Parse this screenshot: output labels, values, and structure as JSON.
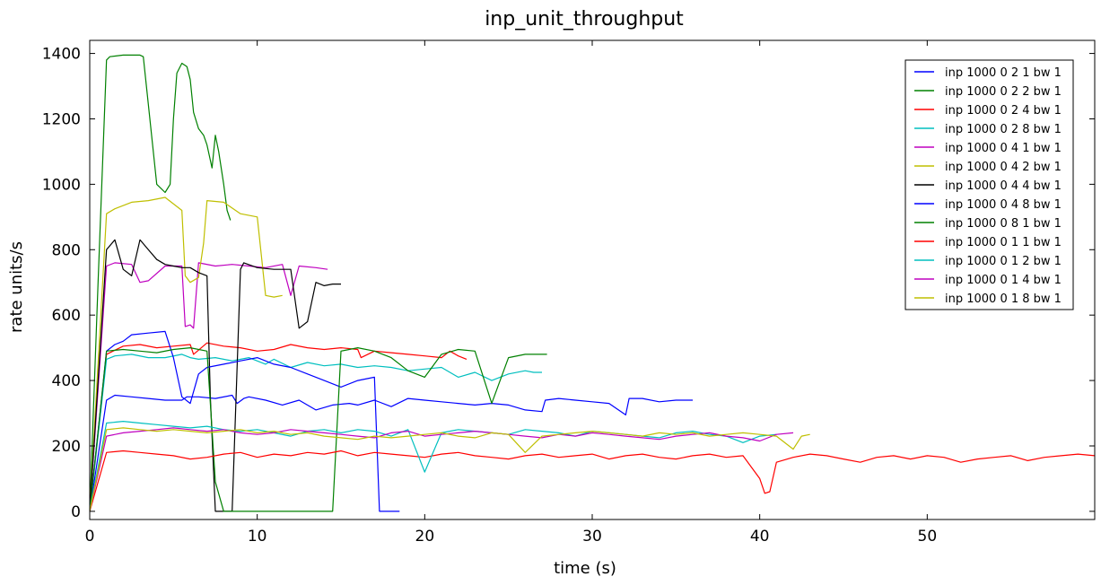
{
  "chart_data": {
    "type": "line",
    "title": "inp_unit_throughput",
    "xlabel": "time (s)",
    "ylabel": "rate units/s",
    "xlim": [
      0,
      60
    ],
    "ylim": [
      -25,
      1440
    ],
    "xticks": [
      0,
      10,
      20,
      30,
      40,
      50
    ],
    "yticks": [
      0,
      200,
      400,
      600,
      800,
      1000,
      1200,
      1400
    ],
    "grid": false,
    "legend_position": "top-right",
    "series": [
      {
        "name": "inp 1000 0 2 1 bw 1",
        "color": "#0000ff",
        "x": [
          0,
          1,
          1.5,
          2.5,
          3.5,
          4.5,
          5.5,
          5.8,
          6.5,
          7.5,
          8.5,
          8.8,
          9.2,
          9.5,
          10.5,
          11.5,
          12.5,
          13.5,
          14.5,
          15.5,
          16,
          17,
          18,
          19,
          20,
          21,
          22,
          23,
          24,
          25,
          26,
          27,
          27.2,
          28,
          29,
          30,
          31,
          32,
          32.2,
          33,
          34,
          35,
          36
        ],
        "y": [
          0,
          340,
          355,
          350,
          345,
          340,
          340,
          350,
          350,
          345,
          355,
          330,
          345,
          350,
          340,
          325,
          340,
          310,
          325,
          330,
          325,
          340,
          320,
          345,
          340,
          335,
          330,
          325,
          330,
          325,
          310,
          305,
          340,
          345,
          340,
          335,
          330,
          295,
          345,
          345,
          335,
          340,
          340
        ]
      },
      {
        "name": "inp 1000 0 2 2 bw 1",
        "color": "#008000",
        "x": [
          0,
          0.5,
          1,
          1.2,
          2,
          3,
          3.2,
          4,
          4.5,
          4.8,
          5,
          5.2,
          5.5,
          5.8,
          6,
          6.2,
          6.5,
          6.8,
          7,
          7.3,
          7.5,
          7.7,
          8,
          8.2,
          8.4
        ],
        "y": [
          0,
          700,
          1380,
          1390,
          1395,
          1395,
          1390,
          1000,
          975,
          1000,
          1200,
          1340,
          1370,
          1360,
          1320,
          1220,
          1170,
          1150,
          1120,
          1050,
          1150,
          1100,
          1000,
          920,
          890
        ]
      },
      {
        "name": "inp 1000 0 2 4 bw 1",
        "color": "#ff0000",
        "x": [
          0,
          1,
          2,
          3,
          4,
          5,
          6,
          6.2,
          7,
          8,
          9,
          10,
          11,
          12,
          13,
          14,
          15,
          16,
          16.2,
          17,
          18,
          19,
          20,
          21,
          21.5,
          22,
          22.5
        ],
        "y": [
          0,
          480,
          505,
          510,
          500,
          505,
          510,
          480,
          515,
          505,
          500,
          490,
          495,
          510,
          500,
          495,
          500,
          495,
          470,
          490,
          485,
          480,
          475,
          470,
          490,
          475,
          465
        ]
      },
      {
        "name": "inp 1000 0 2 8 bw 1",
        "color": "#00bfbf",
        "x": [
          0,
          1,
          1.5,
          2.5,
          3.5,
          4.5,
          5.5,
          6,
          6.5,
          7.5,
          8.5,
          9.5,
          10.5,
          11,
          12,
          13,
          14,
          15,
          16,
          17,
          18,
          19,
          20,
          21,
          22,
          23,
          24,
          25,
          26,
          26.5,
          27
        ],
        "y": [
          0,
          465,
          475,
          480,
          470,
          470,
          480,
          470,
          465,
          470,
          460,
          470,
          450,
          465,
          440,
          455,
          445,
          450,
          440,
          445,
          440,
          430,
          435,
          440,
          410,
          425,
          400,
          420,
          430,
          425,
          425
        ]
      },
      {
        "name": "inp 1000 0 4 1 bw 1",
        "color": "#bf00bf",
        "x": [
          0,
          1,
          1.5,
          2.5,
          3,
          3.5,
          4.5,
          5.5,
          5.7,
          6,
          6.2,
          6.5,
          7.5,
          8.5,
          9.5,
          10.5,
          11.5,
          12,
          12.5,
          13.5,
          14.2
        ],
        "y": [
          0,
          750,
          760,
          755,
          700,
          705,
          750,
          750,
          565,
          570,
          560,
          760,
          750,
          755,
          750,
          745,
          755,
          660,
          750,
          745,
          740
        ]
      },
      {
        "name": "inp 1000 0 4 2 bw 1",
        "color": "#bfbf00",
        "x": [
          0,
          1,
          1.5,
          2.5,
          3.5,
          4.5,
          5.5,
          5.7,
          6,
          6.5,
          6.8,
          7,
          8,
          9,
          10,
          10.5,
          11,
          11.5
        ],
        "y": [
          0,
          910,
          925,
          945,
          950,
          960,
          920,
          720,
          700,
          715,
          820,
          950,
          945,
          910,
          900,
          660,
          655,
          660
        ]
      },
      {
        "name": "inp 1000 0 4 4 bw 1",
        "color": "#000000",
        "x": [
          0,
          1,
          1.5,
          2,
          2.5,
          3,
          3.5,
          4,
          4.5,
          5,
          5.5,
          6,
          6.5,
          7,
          7.2,
          7.5,
          7.8,
          8.5,
          9,
          9.2,
          10,
          11,
          12,
          12.5,
          13,
          13.5,
          14,
          14.5,
          15
        ],
        "y": [
          0,
          800,
          830,
          740,
          720,
          830,
          800,
          770,
          755,
          750,
          745,
          745,
          730,
          720,
          350,
          0,
          0,
          0,
          740,
          760,
          745,
          740,
          740,
          560,
          580,
          700,
          690,
          695,
          695
        ]
      },
      {
        "name": "inp 1000 0 4 8 bw 1",
        "color": "#0000ff",
        "x": [
          0,
          1,
          1.5,
          2,
          2.5,
          3.5,
          4.5,
          5,
          5.5,
          6,
          6.5,
          7,
          8,
          9,
          10,
          11,
          12,
          13,
          14,
          15,
          16,
          17,
          17.3,
          18,
          18.5
        ],
        "y": [
          0,
          490,
          510,
          520,
          540,
          545,
          550,
          470,
          350,
          330,
          420,
          440,
          450,
          460,
          470,
          450,
          440,
          420,
          400,
          380,
          400,
          410,
          0,
          0,
          0
        ]
      },
      {
        "name": "inp 1000 0 8 1 bw 1",
        "color": "#008000",
        "x": [
          0,
          1,
          2,
          3,
          4,
          5,
          6,
          7,
          7.5,
          8,
          9,
          10,
          11,
          12,
          13,
          14,
          14.5,
          15,
          16,
          17,
          18,
          19,
          20,
          21,
          22,
          23,
          24,
          25,
          26,
          27.3
        ],
        "y": [
          0,
          490,
          495,
          490,
          485,
          495,
          500,
          490,
          90,
          0,
          0,
          0,
          0,
          0,
          0,
          0,
          0,
          490,
          500,
          490,
          470,
          430,
          410,
          480,
          495,
          490,
          330,
          470,
          480,
          480
        ]
      },
      {
        "name": "inp 1000 0 1 1 bw 1",
        "color": "#ff0000",
        "x": [
          0,
          1,
          2,
          3,
          4,
          5,
          6,
          7,
          8,
          9,
          10,
          11,
          12,
          13,
          14,
          15,
          16,
          17,
          18,
          19,
          20,
          21,
          22,
          23,
          24,
          25,
          26,
          27,
          28,
          29,
          30,
          31,
          32,
          33,
          34,
          35,
          36,
          37,
          38,
          39,
          40,
          40.3,
          40.6,
          41,
          42,
          43,
          44,
          45,
          46,
          47,
          48,
          49,
          50,
          51,
          52,
          53,
          54,
          55,
          56,
          57,
          58,
          59,
          60
        ],
        "y": [
          0,
          180,
          185,
          180,
          175,
          170,
          160,
          165,
          175,
          180,
          165,
          175,
          170,
          180,
          175,
          185,
          170,
          180,
          175,
          170,
          165,
          175,
          180,
          170,
          165,
          160,
          170,
          175,
          165,
          170,
          175,
          160,
          170,
          175,
          165,
          160,
          170,
          175,
          165,
          170,
          100,
          55,
          60,
          150,
          165,
          175,
          170,
          160,
          150,
          165,
          170,
          160,
          170,
          165,
          150,
          160,
          165,
          170,
          155,
          165,
          170,
          175,
          170
        ]
      },
      {
        "name": "inp 1000 0 1 2 bw 1",
        "color": "#00bfbf",
        "x": [
          0,
          1,
          2,
          3,
          4,
          5,
          6,
          7,
          8,
          9,
          10,
          11,
          12,
          13,
          14,
          15,
          16,
          17,
          18,
          19,
          20,
          21,
          22,
          23,
          24,
          25,
          26,
          27,
          28,
          29,
          30,
          31,
          32,
          33,
          34,
          35,
          36,
          37,
          38,
          39,
          40,
          41
        ],
        "y": [
          0,
          270,
          275,
          270,
          265,
          260,
          255,
          260,
          250,
          245,
          250,
          240,
          230,
          245,
          250,
          240,
          250,
          245,
          230,
          250,
          120,
          240,
          250,
          245,
          240,
          235,
          250,
          245,
          240,
          230,
          245,
          240,
          235,
          230,
          225,
          240,
          245,
          235,
          230,
          210,
          230,
          235
        ]
      },
      {
        "name": "inp 1000 0 1 4 bw 1",
        "color": "#bf00bf",
        "x": [
          0,
          1,
          2,
          3,
          4,
          5,
          6,
          7,
          8,
          9,
          10,
          11,
          12,
          13,
          14,
          15,
          16,
          17,
          18,
          19,
          20,
          21,
          22,
          23,
          24,
          25,
          26,
          27,
          28,
          29,
          30,
          31,
          32,
          33,
          34,
          35,
          36,
          37,
          38,
          39,
          40,
          41,
          42
        ],
        "y": [
          0,
          230,
          240,
          245,
          250,
          255,
          250,
          245,
          250,
          240,
          235,
          240,
          250,
          245,
          240,
          235,
          230,
          225,
          240,
          245,
          230,
          235,
          240,
          245,
          240,
          235,
          230,
          225,
          235,
          230,
          240,
          235,
          230,
          225,
          220,
          230,
          235,
          240,
          230,
          225,
          215,
          235,
          240
        ]
      },
      {
        "name": "inp 1000 0 1 8 bw 1",
        "color": "#bfbf00",
        "x": [
          0,
          1,
          2,
          3,
          4,
          5,
          6,
          7,
          8,
          9,
          10,
          11,
          12,
          13,
          14,
          15,
          16,
          17,
          18,
          19,
          20,
          21,
          22,
          23,
          24,
          25,
          26,
          27,
          28,
          29,
          30,
          31,
          32,
          33,
          34,
          35,
          36,
          37,
          38,
          39,
          40,
          41,
          42,
          42.5,
          43
        ],
        "y": [
          0,
          250,
          255,
          250,
          245,
          250,
          245,
          240,
          245,
          250,
          240,
          245,
          235,
          240,
          230,
          225,
          220,
          230,
          225,
          230,
          235,
          240,
          230,
          225,
          240,
          235,
          180,
          230,
          235,
          240,
          245,
          240,
          235,
          230,
          240,
          235,
          240,
          230,
          235,
          240,
          235,
          230,
          190,
          230,
          235
        ]
      }
    ]
  }
}
